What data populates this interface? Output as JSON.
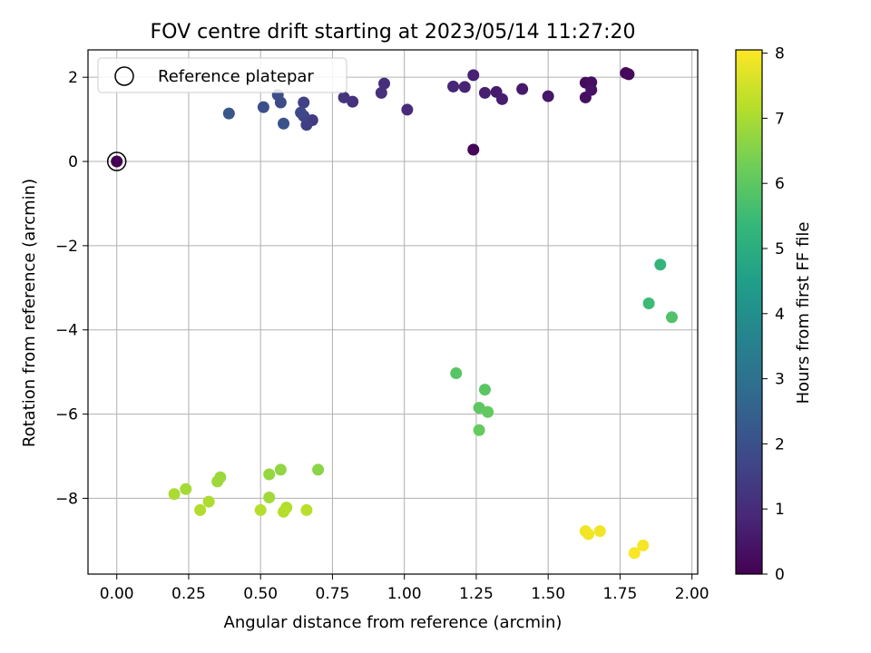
{
  "chart_data": {
    "type": "scatter",
    "title": "FOV centre drift starting at 2023/05/14 11:27:20",
    "xlabel": "Angular distance from reference (arcmin)",
    "ylabel": "Rotation from reference (arcmin)",
    "xlim": [
      -0.1,
      2.02
    ],
    "ylim": [
      -9.8,
      2.65
    ],
    "xticks": [
      "0.00",
      "0.25",
      "0.50",
      "0.75",
      "1.00",
      "1.25",
      "1.50",
      "1.75",
      "2.00"
    ],
    "xtick_values": [
      0,
      0.25,
      0.5,
      0.75,
      1.0,
      1.25,
      1.5,
      1.75,
      2.0
    ],
    "yticks": [
      "2",
      "0",
      "−2",
      "−4",
      "−6",
      "−8"
    ],
    "ytick_values": [
      2,
      0,
      -2,
      -4,
      -6,
      -8
    ],
    "grid": true,
    "legend_position": "top-left",
    "legend": [
      "Reference platepar"
    ],
    "reference_point": {
      "x": 0,
      "y": 0
    },
    "colorbar": {
      "label": "Hours from first FF file",
      "range": [
        0,
        8.05
      ],
      "ticks": [
        "0",
        "1",
        "2",
        "3",
        "4",
        "5",
        "6",
        "7",
        "8"
      ],
      "tick_values": [
        0,
        1,
        2,
        3,
        4,
        5,
        6,
        7,
        8
      ],
      "colormap": "viridis",
      "colors": [
        "#440154",
        "#482878",
        "#3e4989",
        "#31688e",
        "#26828e",
        "#1f9e89",
        "#35b779",
        "#6ece58",
        "#b5de2b",
        "#fde725"
      ]
    },
    "points": [
      {
        "x": 0.0,
        "y": 0.0,
        "hours": 0.0
      },
      {
        "x": 1.24,
        "y": 0.28,
        "hours": 0.1
      },
      {
        "x": 1.77,
        "y": 2.1,
        "hours": 0.15
      },
      {
        "x": 1.78,
        "y": 2.07,
        "hours": 0.2
      },
      {
        "x": 1.63,
        "y": 1.87,
        "hours": 0.25
      },
      {
        "x": 1.65,
        "y": 1.88,
        "hours": 0.3
      },
      {
        "x": 1.63,
        "y": 1.52,
        "hours": 0.35
      },
      {
        "x": 1.65,
        "y": 1.7,
        "hours": 0.4
      },
      {
        "x": 1.5,
        "y": 1.55,
        "hours": 0.5
      },
      {
        "x": 1.41,
        "y": 1.72,
        "hours": 0.55
      },
      {
        "x": 1.32,
        "y": 1.65,
        "hours": 0.6
      },
      {
        "x": 1.34,
        "y": 1.48,
        "hours": 0.65
      },
      {
        "x": 1.28,
        "y": 1.63,
        "hours": 0.7
      },
      {
        "x": 1.24,
        "y": 2.05,
        "hours": 0.75
      },
      {
        "x": 1.21,
        "y": 1.77,
        "hours": 0.8
      },
      {
        "x": 1.17,
        "y": 1.78,
        "hours": 0.85
      },
      {
        "x": 1.01,
        "y": 1.23,
        "hours": 1.0
      },
      {
        "x": 0.93,
        "y": 1.85,
        "hours": 1.05
      },
      {
        "x": 0.92,
        "y": 1.63,
        "hours": 1.1
      },
      {
        "x": 0.82,
        "y": 1.42,
        "hours": 1.15
      },
      {
        "x": 0.79,
        "y": 1.52,
        "hours": 1.2
      },
      {
        "x": 0.68,
        "y": 0.98,
        "hours": 1.4
      },
      {
        "x": 0.66,
        "y": 0.87,
        "hours": 1.5
      },
      {
        "x": 0.65,
        "y": 1.4,
        "hours": 1.6
      },
      {
        "x": 0.65,
        "y": 1.08,
        "hours": 1.7
      },
      {
        "x": 0.64,
        "y": 1.16,
        "hours": 1.8
      },
      {
        "x": 0.57,
        "y": 1.4,
        "hours": 1.85
      },
      {
        "x": 0.56,
        "y": 1.58,
        "hours": 1.9
      },
      {
        "x": 0.51,
        "y": 1.29,
        "hours": 1.95
      },
      {
        "x": 0.58,
        "y": 0.9,
        "hours": 2.05
      },
      {
        "x": 0.39,
        "y": 1.14,
        "hours": 2.2
      },
      {
        "x": 1.89,
        "y": -2.45,
        "hours": 5.3
      },
      {
        "x": 1.85,
        "y": -3.37,
        "hours": 5.5
      },
      {
        "x": 1.93,
        "y": -3.7,
        "hours": 5.8
      },
      {
        "x": 1.18,
        "y": -5.03,
        "hours": 5.9
      },
      {
        "x": 1.28,
        "y": -5.42,
        "hours": 5.95
      },
      {
        "x": 1.26,
        "y": -5.85,
        "hours": 6.0
      },
      {
        "x": 1.29,
        "y": -5.95,
        "hours": 6.05
      },
      {
        "x": 1.26,
        "y": -6.38,
        "hours": 6.1
      },
      {
        "x": 0.7,
        "y": -7.32,
        "hours": 6.6
      },
      {
        "x": 0.57,
        "y": -7.32,
        "hours": 6.7
      },
      {
        "x": 0.53,
        "y": -7.43,
        "hours": 6.75
      },
      {
        "x": 0.36,
        "y": -7.5,
        "hours": 6.8
      },
      {
        "x": 0.35,
        "y": -7.6,
        "hours": 6.85
      },
      {
        "x": 0.53,
        "y": -7.98,
        "hours": 6.9
      },
      {
        "x": 0.24,
        "y": -7.78,
        "hours": 6.95
      },
      {
        "x": 0.2,
        "y": -7.9,
        "hours": 7.0
      },
      {
        "x": 0.32,
        "y": -8.08,
        "hours": 7.05
      },
      {
        "x": 0.29,
        "y": -8.28,
        "hours": 7.1
      },
      {
        "x": 0.59,
        "y": -8.22,
        "hours": 7.1
      },
      {
        "x": 0.58,
        "y": -8.32,
        "hours": 7.15
      },
      {
        "x": 0.5,
        "y": -8.28,
        "hours": 7.15
      },
      {
        "x": 0.66,
        "y": -8.28,
        "hours": 7.2
      },
      {
        "x": 1.63,
        "y": -8.78,
        "hours": 7.85
      },
      {
        "x": 1.64,
        "y": -8.85,
        "hours": 7.9
      },
      {
        "x": 1.68,
        "y": -8.78,
        "hours": 7.9
      },
      {
        "x": 1.83,
        "y": -9.12,
        "hours": 7.95
      },
      {
        "x": 1.8,
        "y": -9.3,
        "hours": 8.0
      }
    ]
  }
}
